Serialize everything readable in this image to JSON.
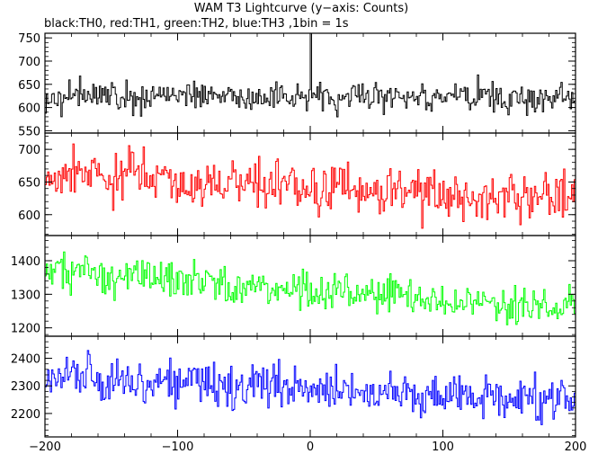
{
  "chart_data": {
    "type": "line",
    "title": "WAM T3 Lightcurve (y−axis: Counts)",
    "subtitle": "black:TH0, red:TH1, green:TH2, blue:TH3 ,1bin = 1s",
    "x_range": [
      -200,
      200
    ],
    "x_ticks": [
      -200,
      -100,
      0,
      100,
      200
    ],
    "x_tick_labels": [
      "−200",
      "−100",
      "0",
      "100",
      "200"
    ],
    "bin_seconds": 1,
    "panels": [
      {
        "name": "TH0",
        "color": "#000000",
        "ylim": [
          545,
          760
        ],
        "y_ticks": [
          550,
          600,
          650,
          700,
          750
        ],
        "trend": [
          [
            -200,
            625
          ],
          [
            0,
            625
          ],
          [
            200,
            618
          ]
        ],
        "noise": 22,
        "spikes": [
          [
            0,
            760
          ]
        ],
        "values": [
          {
            "x": -200,
            "y": 625
          },
          {
            "x": -150,
            "y": 630
          },
          {
            "x": -100,
            "y": 625
          },
          {
            "x": -50,
            "y": 622
          },
          {
            "x": 0,
            "y": 760
          },
          {
            "x": 50,
            "y": 622
          },
          {
            "x": 100,
            "y": 620
          },
          {
            "x": 150,
            "y": 620
          },
          {
            "x": 200,
            "y": 618
          }
        ]
      },
      {
        "name": "TH1",
        "color": "#ff0000",
        "ylim": [
          568,
          725
        ],
        "y_ticks": [
          600,
          650,
          700
        ],
        "trend": [
          [
            -200,
            665
          ],
          [
            -100,
            650
          ],
          [
            0,
            638
          ],
          [
            200,
            628
          ]
        ],
        "noise": 26,
        "spikes": [],
        "values": [
          {
            "x": -200,
            "y": 665
          },
          {
            "x": -150,
            "y": 660
          },
          {
            "x": -100,
            "y": 650
          },
          {
            "x": -50,
            "y": 643
          },
          {
            "x": 0,
            "y": 638
          },
          {
            "x": 50,
            "y": 635
          },
          {
            "x": 100,
            "y": 632
          },
          {
            "x": 150,
            "y": 630
          },
          {
            "x": 200,
            "y": 628
          }
        ]
      },
      {
        "name": "TH2",
        "color": "#00ff00",
        "ylim": [
          1175,
          1475
        ],
        "y_ticks": [
          1200,
          1300,
          1400
        ],
        "trend": [
          [
            -200,
            1370
          ],
          [
            -150,
            1360
          ],
          [
            -100,
            1340
          ],
          [
            0,
            1310
          ],
          [
            100,
            1280
          ],
          [
            200,
            1255
          ]
        ],
        "noise": 38,
        "spikes": [],
        "values": [
          {
            "x": -200,
            "y": 1370
          },
          {
            "x": -150,
            "y": 1360
          },
          {
            "x": -100,
            "y": 1340
          },
          {
            "x": -50,
            "y": 1325
          },
          {
            "x": 0,
            "y": 1310
          },
          {
            "x": 50,
            "y": 1295
          },
          {
            "x": 100,
            "y": 1280
          },
          {
            "x": 150,
            "y": 1268
          },
          {
            "x": 200,
            "y": 1255
          }
        ]
      },
      {
        "name": "TH3",
        "color": "#0000ff",
        "ylim": [
          2115,
          2480
        ],
        "y_ticks": [
          2200,
          2300,
          2400
        ],
        "trend": [
          [
            -200,
            2330
          ],
          [
            -150,
            2325
          ],
          [
            -100,
            2310
          ],
          [
            0,
            2290
          ],
          [
            100,
            2270
          ],
          [
            200,
            2240
          ]
        ],
        "noise": 55,
        "spikes": [],
        "values": [
          {
            "x": -200,
            "y": 2330
          },
          {
            "x": -150,
            "y": 2325
          },
          {
            "x": -100,
            "y": 2310
          },
          {
            "x": -50,
            "y": 2300
          },
          {
            "x": 0,
            "y": 2290
          },
          {
            "x": 50,
            "y": 2280
          },
          {
            "x": 100,
            "y": 2270
          },
          {
            "x": 150,
            "y": 2255
          },
          {
            "x": 200,
            "y": 2240
          }
        ]
      }
    ]
  }
}
